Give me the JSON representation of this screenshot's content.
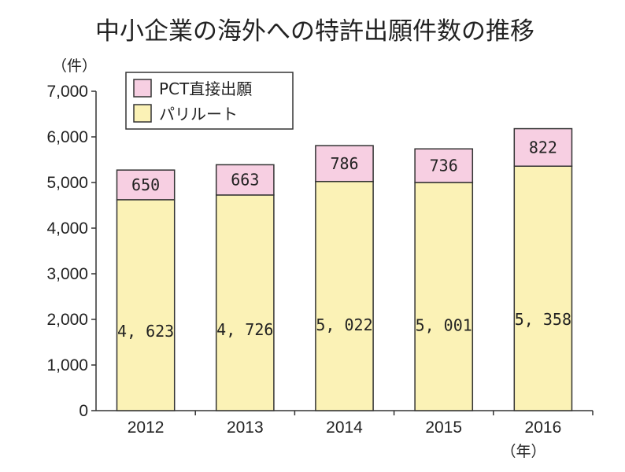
{
  "chart_data": {
    "type": "bar",
    "stacked": true,
    "title": "中小企業の海外への特許出願件数の推移",
    "y_unit": "（件）",
    "x_unit": "（年）",
    "categories": [
      "2012",
      "2013",
      "2014",
      "2015",
      "2016"
    ],
    "series": [
      {
        "name": "パリルート",
        "values": [
          4623,
          4726,
          5022,
          5001,
          5358
        ],
        "labels": [
          "4, 623",
          "4, 726",
          "5, 022",
          "5, 001",
          "5, 358"
        ],
        "color": "#fbf2b6"
      },
      {
        "name": "PCT直接出願",
        "values": [
          650,
          663,
          786,
          736,
          822
        ],
        "labels": [
          "650",
          "663",
          "786",
          "736",
          "822"
        ],
        "color": "#f7cfe2"
      }
    ],
    "legend": [
      "PCT直接出願",
      "パリルート"
    ],
    "legend_position": "top-left",
    "ylim": [
      0,
      7000
    ],
    "yticks": [
      0,
      1000,
      2000,
      3000,
      4000,
      5000,
      6000,
      7000
    ],
    "ytick_labels": [
      "0",
      "1,000",
      "2,000",
      "3,000",
      "4,000",
      "5,000",
      "6,000",
      "7,000"
    ],
    "grid": false
  }
}
